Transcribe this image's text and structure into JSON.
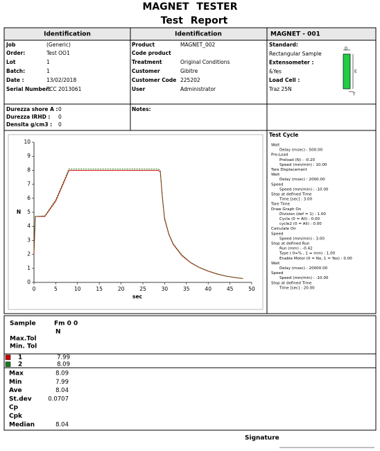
{
  "header": {
    "title": "MAGNET TESTER",
    "subtitle": "Test Report"
  },
  "identification": {
    "headers": [
      "Identification",
      "Identification",
      "MAGNET - 001"
    ],
    "col1": [
      {
        "label": "Job",
        "value": "(Generic)"
      },
      {
        "label": "Order:",
        "value": "Test OO1"
      },
      {
        "label": "Lot",
        "value": 1
      },
      {
        "label": "Batch:",
        "value": 1
      },
      {
        "label": "Date :",
        "value": "13/02/2018"
      },
      {
        "label": "Serial Number:",
        "value": "TCC 2013061"
      }
    ],
    "col2": [
      {
        "label": "Product",
        "value": "MAGNET_002"
      },
      {
        "label": "Code product"
      },
      {
        "label": "Treatment",
        "value": "Original Conditions"
      },
      {
        "label": "Customer",
        "value": "Gibitre"
      },
      {
        "label": "Customer Code",
        "value": "225202"
      },
      {
        "label": "User",
        "value": "Administrator"
      }
    ],
    "col3": [
      {
        "label": "Standard:",
        "value": "Rectangular Sample"
      },
      {
        "label": "Extensometer :",
        "value": "&Yes"
      },
      {
        "label": "Load Cell :",
        "value": "Traz 25N"
      }
    ],
    "specimen": [
      "D",
      "E",
      "T"
    ]
  },
  "hardness": [
    {
      "label": "Durezza shore A :",
      "value": 0
    },
    {
      "label": "Durezza IRHD :",
      "value": 0
    },
    {
      "label": "Densita g/cm3 :",
      "value": 0
    }
  ],
  "notes": "Notes:",
  "test_cycle": {
    "title": "Test Cycle",
    "steps": [
      {
        "name": "Wait",
        "params": [
          "Delay (msec) : 500.00"
        ]
      },
      {
        "name": "Pre-Load",
        "params": [
          "Preload (N) : -0.20",
          "Speed (mm/min) : 10.00"
        ]
      },
      {
        "name": "Tare Displacement",
        "params": []
      },
      {
        "name": "Wait",
        "params": [
          "Delay (msec) : 2000.00"
        ]
      },
      {
        "name": "Speed",
        "params": [
          "Speed (mm/min) : -10.00"
        ]
      },
      {
        "name": "Stop at defined Time",
        "params": [
          "Time [sec] : 3.00"
        ]
      },
      {
        "name": "Tare Time",
        "params": []
      },
      {
        "name": "Draw Graph On",
        "params": [
          "Division (def = 1) : 1.00",
          "Cycle (0 = All) : 0.00",
          "cycle2 (0 = All) : 0.00"
        ]
      },
      {
        "name": "Calculate On",
        "params": []
      },
      {
        "name": "Speed",
        "params": [
          "Speed (mm/min) : 3.00"
        ]
      },
      {
        "name": "Stop at defined Run",
        "params": [
          "Run (mm) : -0.42",
          "Type ( 0=% , 1 = mm) : 1.00",
          "Enable Motor (0 = No, 1 = Yes) : 0.00"
        ]
      },
      {
        "name": "Wait",
        "params": [
          "Delay (msec) : 20000.00"
        ]
      },
      {
        "name": "Speed",
        "params": [
          "Speed (mm/min) : -10.00"
        ]
      },
      {
        "name": "Stop at defined Time",
        "params": [
          "Time [sec] : 20.00"
        ]
      }
    ]
  },
  "chart_data": {
    "type": "line",
    "xlabel": "sec",
    "ylabel": "N",
    "x": [
      0,
      0.3,
      2.5,
      5,
      7.5,
      8,
      28.5,
      29,
      29.5,
      30,
      31,
      32,
      34,
      36,
      38,
      40,
      42,
      44,
      46,
      48
    ],
    "series": [
      {
        "name": "1",
        "color": "#cc0000",
        "dash": false,
        "values": [
          2,
          4.7,
          4.7,
          5.8,
          7.6,
          7.99,
          7.99,
          7.9,
          6,
          4.5,
          3.4,
          2.7,
          1.9,
          1.4,
          1.05,
          0.8,
          0.6,
          0.45,
          0.35,
          0.27
        ]
      },
      {
        "name": "2",
        "color": "#1a7a1a",
        "dash": true,
        "values": [
          2.2,
          4.7,
          4.75,
          5.9,
          7.7,
          8.09,
          8.09,
          8,
          6.1,
          4.6,
          3.45,
          2.75,
          1.95,
          1.42,
          1.07,
          0.82,
          0.62,
          0.46,
          0.36,
          0.28
        ]
      }
    ],
    "xlim": [
      0,
      50
    ],
    "xticks": [
      0,
      5,
      10,
      15,
      20,
      25,
      30,
      35,
      40,
      45,
      50
    ],
    "ylim": [
      0,
      10
    ],
    "yticks": [
      0,
      1,
      2,
      3,
      4,
      5,
      6,
      7,
      8,
      9,
      10
    ],
    "grid": false
  },
  "results": {
    "headers": [
      "Sample",
      "Fm 0 0",
      "N",
      "Max.Tol",
      "Min. Tol"
    ],
    "samples": [
      7.99,
      8.09
    ],
    "stats": [
      {
        "label": "Max",
        "value": 8.09
      },
      {
        "label": "Min",
        "value": 7.99
      },
      {
        "label": "Ave",
        "value": 8.04
      },
      {
        "label": "St.dev",
        "value": 0.0707
      },
      {
        "label": "Cp"
      },
      {
        "label": "Cpk"
      },
      {
        "label": "Median",
        "value": 8.04
      }
    ]
  },
  "signature": "Signature"
}
